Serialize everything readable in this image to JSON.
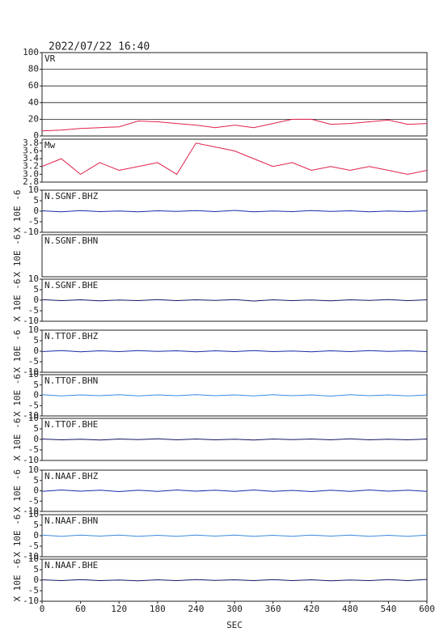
{
  "chart_data": [
    {
      "type": "line",
      "title": "2022/07/22 16:40",
      "name": "VR",
      "x": [
        0,
        30,
        60,
        90,
        120,
        150,
        180,
        210,
        240,
        270,
        300,
        330,
        360,
        390,
        420,
        450,
        480,
        510,
        540,
        570,
        600
      ],
      "series": [
        {
          "color": "#e0204a",
          "values": [
            6,
            7,
            9,
            10,
            11,
            18,
            17,
            15,
            13,
            10,
            13,
            10,
            15,
            20,
            20,
            14,
            15,
            17,
            19,
            14,
            15
          ]
        }
      ],
      "ylim": [
        0,
        100
      ],
      "yticks": [
        0,
        20,
        40,
        60,
        80,
        100
      ],
      "grid": true,
      "xlim": [
        0,
        600
      ]
    },
    {
      "type": "line",
      "name": "Mw",
      "x": [
        0,
        30,
        60,
        90,
        120,
        150,
        180,
        210,
        240,
        270,
        300,
        330,
        360,
        390,
        420,
        450,
        480,
        510,
        540,
        570,
        600
      ],
      "series": [
        {
          "color": "#e0204a",
          "values": [
            3.2,
            3.4,
            3.0,
            3.3,
            3.1,
            3.2,
            3.3,
            3.0,
            3.8,
            3.7,
            3.6,
            3.4,
            3.2,
            3.3,
            3.1,
            3.2,
            3.1,
            3.2,
            3.1,
            3.0,
            3.1
          ]
        }
      ],
      "ylim": [
        2.8,
        3.9
      ],
      "yticks": [
        2.8,
        {
          "value": 3.0,
          "label": "3.0"
        },
        3.2,
        3.4,
        3.6,
        3.8
      ],
      "grid": false,
      "xlim": [
        0,
        600
      ]
    },
    {
      "type": "line",
      "name": "N.SGNF.BHZ",
      "ylabel": "X 10E -6",
      "x": [
        0,
        30,
        60,
        90,
        120,
        150,
        180,
        210,
        240,
        270,
        300,
        330,
        360,
        390,
        420,
        450,
        480,
        510,
        540,
        570,
        600
      ],
      "series": [
        {
          "color": "#1a2aa8",
          "values": [
            0.2,
            -0.3,
            0.3,
            -0.2,
            0.1,
            -0.3,
            0.2,
            -0.1,
            0.3,
            -0.2,
            0.4,
            -0.3,
            0.1,
            -0.2,
            0.3,
            -0.1,
            0.2,
            -0.3,
            0.1,
            -0.2,
            0.2
          ]
        }
      ],
      "ylim": [
        -10,
        10
      ],
      "yticks": [
        10,
        5,
        0,
        -5,
        -10
      ],
      "grid": false,
      "xlim": [
        0,
        600
      ]
    },
    {
      "type": "line",
      "name": "N.SGNF.BHN",
      "ylabel": "X 10E -6",
      "x": [],
      "series": [],
      "ylim": [
        -10,
        10
      ],
      "yticks": [],
      "grid": false,
      "xlim": [
        0,
        600
      ]
    },
    {
      "type": "line",
      "name": "N.SGNF.BHE",
      "ylabel": "X 10E -6",
      "x": [
        0,
        30,
        60,
        90,
        120,
        150,
        180,
        210,
        240,
        270,
        300,
        330,
        360,
        390,
        420,
        450,
        480,
        510,
        540,
        570,
        600
      ],
      "series": [
        {
          "color": "#141466",
          "values": [
            0.3,
            -0.2,
            0.2,
            -0.3,
            0.1,
            -0.2,
            0.3,
            -0.2,
            0.2,
            -0.1,
            0.3,
            -0.4,
            0.2,
            -0.2,
            0.1,
            -0.3,
            0.2,
            -0.1,
            0.3,
            -0.2,
            0.2
          ]
        }
      ],
      "ylim": [
        -10,
        10
      ],
      "yticks": [
        10,
        5,
        0,
        -5,
        -10
      ],
      "grid": false,
      "xlim": [
        0,
        600
      ]
    },
    {
      "type": "line",
      "name": "N.TTOF.BHZ",
      "ylabel": "X 10E -6",
      "x": [
        0,
        30,
        60,
        90,
        120,
        150,
        180,
        210,
        240,
        270,
        300,
        330,
        360,
        390,
        420,
        450,
        480,
        510,
        540,
        570,
        600
      ],
      "series": [
        {
          "color": "#1a2aa8",
          "values": [
            -0.2,
            0.3,
            -0.3,
            0.2,
            -0.2,
            0.3,
            -0.1,
            0.2,
            -0.3,
            0.2,
            -0.2,
            0.3,
            -0.2,
            0.1,
            -0.3,
            0.2,
            -0.2,
            0.3,
            -0.1,
            0.2,
            -0.2
          ]
        }
      ],
      "ylim": [
        -10,
        10
      ],
      "yticks": [
        10,
        5,
        0,
        -5,
        -10
      ],
      "grid": false,
      "xlim": [
        0,
        600
      ]
    },
    {
      "type": "line",
      "name": "N.TTOF.BHN",
      "ylabel": "X 10E -6",
      "x": [
        0,
        30,
        60,
        90,
        120,
        150,
        180,
        210,
        240,
        270,
        300,
        330,
        360,
        390,
        420,
        450,
        480,
        510,
        540,
        570,
        600
      ],
      "series": [
        {
          "color": "#3a8ce0",
          "values": [
            0.3,
            -0.3,
            0.2,
            -0.2,
            0.3,
            -0.3,
            0.2,
            -0.2,
            0.3,
            -0.2,
            0.2,
            -0.3,
            0.3,
            -0.2,
            0.2,
            -0.4,
            0.3,
            -0.2,
            0.2,
            -0.3,
            0.2
          ]
        }
      ],
      "ylim": [
        -10,
        10
      ],
      "yticks": [
        10,
        5,
        0,
        -5,
        -10
      ],
      "grid": false,
      "xlim": [
        0,
        600
      ]
    },
    {
      "type": "line",
      "name": "N.TTOF.BHE",
      "ylabel": "X 10E -6",
      "x": [
        0,
        30,
        60,
        90,
        120,
        150,
        180,
        210,
        240,
        270,
        300,
        330,
        360,
        390,
        420,
        450,
        480,
        510,
        540,
        570,
        600
      ],
      "series": [
        {
          "color": "#141466",
          "values": [
            0.2,
            -0.2,
            0.1,
            -0.3,
            0.2,
            -0.1,
            0.3,
            -0.2,
            0.2,
            -0.2,
            0.1,
            -0.3,
            0.2,
            -0.1,
            0.2,
            -0.2,
            0.3,
            -0.2,
            0.1,
            -0.2,
            0.2
          ]
        }
      ],
      "ylim": [
        -10,
        10
      ],
      "yticks": [
        10,
        5,
        0,
        -5,
        -10
      ],
      "grid": false,
      "xlim": [
        0,
        600
      ]
    },
    {
      "type": "line",
      "name": "N.NAAF.BHZ",
      "ylabel": "X 10E -6",
      "x": [
        0,
        30,
        60,
        90,
        120,
        150,
        180,
        210,
        240,
        270,
        300,
        330,
        360,
        390,
        420,
        450,
        480,
        510,
        540,
        570,
        600
      ],
      "series": [
        {
          "color": "#1a2aa8",
          "values": [
            -0.3,
            0.4,
            -0.2,
            0.3,
            -0.4,
            0.3,
            -0.3,
            0.4,
            -0.2,
            0.3,
            -0.3,
            0.4,
            -0.3,
            0.2,
            -0.4,
            0.3,
            -0.3,
            0.4,
            -0.2,
            0.3,
            -0.3
          ]
        }
      ],
      "ylim": [
        -10,
        10
      ],
      "yticks": [
        10,
        5,
        0,
        -5,
        -10
      ],
      "grid": false,
      "xlim": [
        0,
        600
      ]
    },
    {
      "type": "line",
      "name": "N.NAAF.BHN",
      "ylabel": "X 10E -6",
      "x": [
        0,
        30,
        60,
        90,
        120,
        150,
        180,
        210,
        240,
        270,
        300,
        330,
        360,
        390,
        420,
        450,
        480,
        510,
        540,
        570,
        600
      ],
      "series": [
        {
          "color": "#3a8ce0",
          "values": [
            0.3,
            -0.3,
            0.3,
            -0.2,
            0.3,
            -0.3,
            0.2,
            -0.3,
            0.3,
            -0.2,
            0.3,
            -0.3,
            0.2,
            -0.3,
            0.3,
            -0.2,
            0.3,
            -0.3,
            0.2,
            -0.3,
            0.3
          ]
        }
      ],
      "ylim": [
        -10,
        10
      ],
      "yticks": [
        10,
        5,
        0,
        -5,
        -10
      ],
      "grid": false,
      "xlim": [
        0,
        600
      ]
    },
    {
      "type": "line",
      "name": "N.NAAF.BHE",
      "ylabel": "X 10E -6",
      "x": [
        0,
        30,
        60,
        90,
        120,
        150,
        180,
        210,
        240,
        270,
        300,
        330,
        360,
        390,
        420,
        450,
        480,
        510,
        540,
        570,
        600
      ],
      "series": [
        {
          "color": "#141466",
          "values": [
            0.2,
            -0.2,
            0.3,
            -0.2,
            0.1,
            -0.3,
            0.2,
            -0.2,
            0.3,
            -0.1,
            0.2,
            -0.2,
            0.3,
            -0.2,
            0.2,
            -0.3,
            0.1,
            -0.2,
            0.3,
            -0.2,
            0.4
          ]
        }
      ],
      "ylim": [
        -10,
        10
      ],
      "yticks": [
        10,
        5,
        0,
        -5,
        -10
      ],
      "grid": false,
      "xlim": [
        0,
        600
      ],
      "xticks": [
        0,
        60,
        120,
        180,
        240,
        300,
        360,
        420,
        480,
        540,
        600
      ],
      "xlabel": "SEC"
    }
  ]
}
